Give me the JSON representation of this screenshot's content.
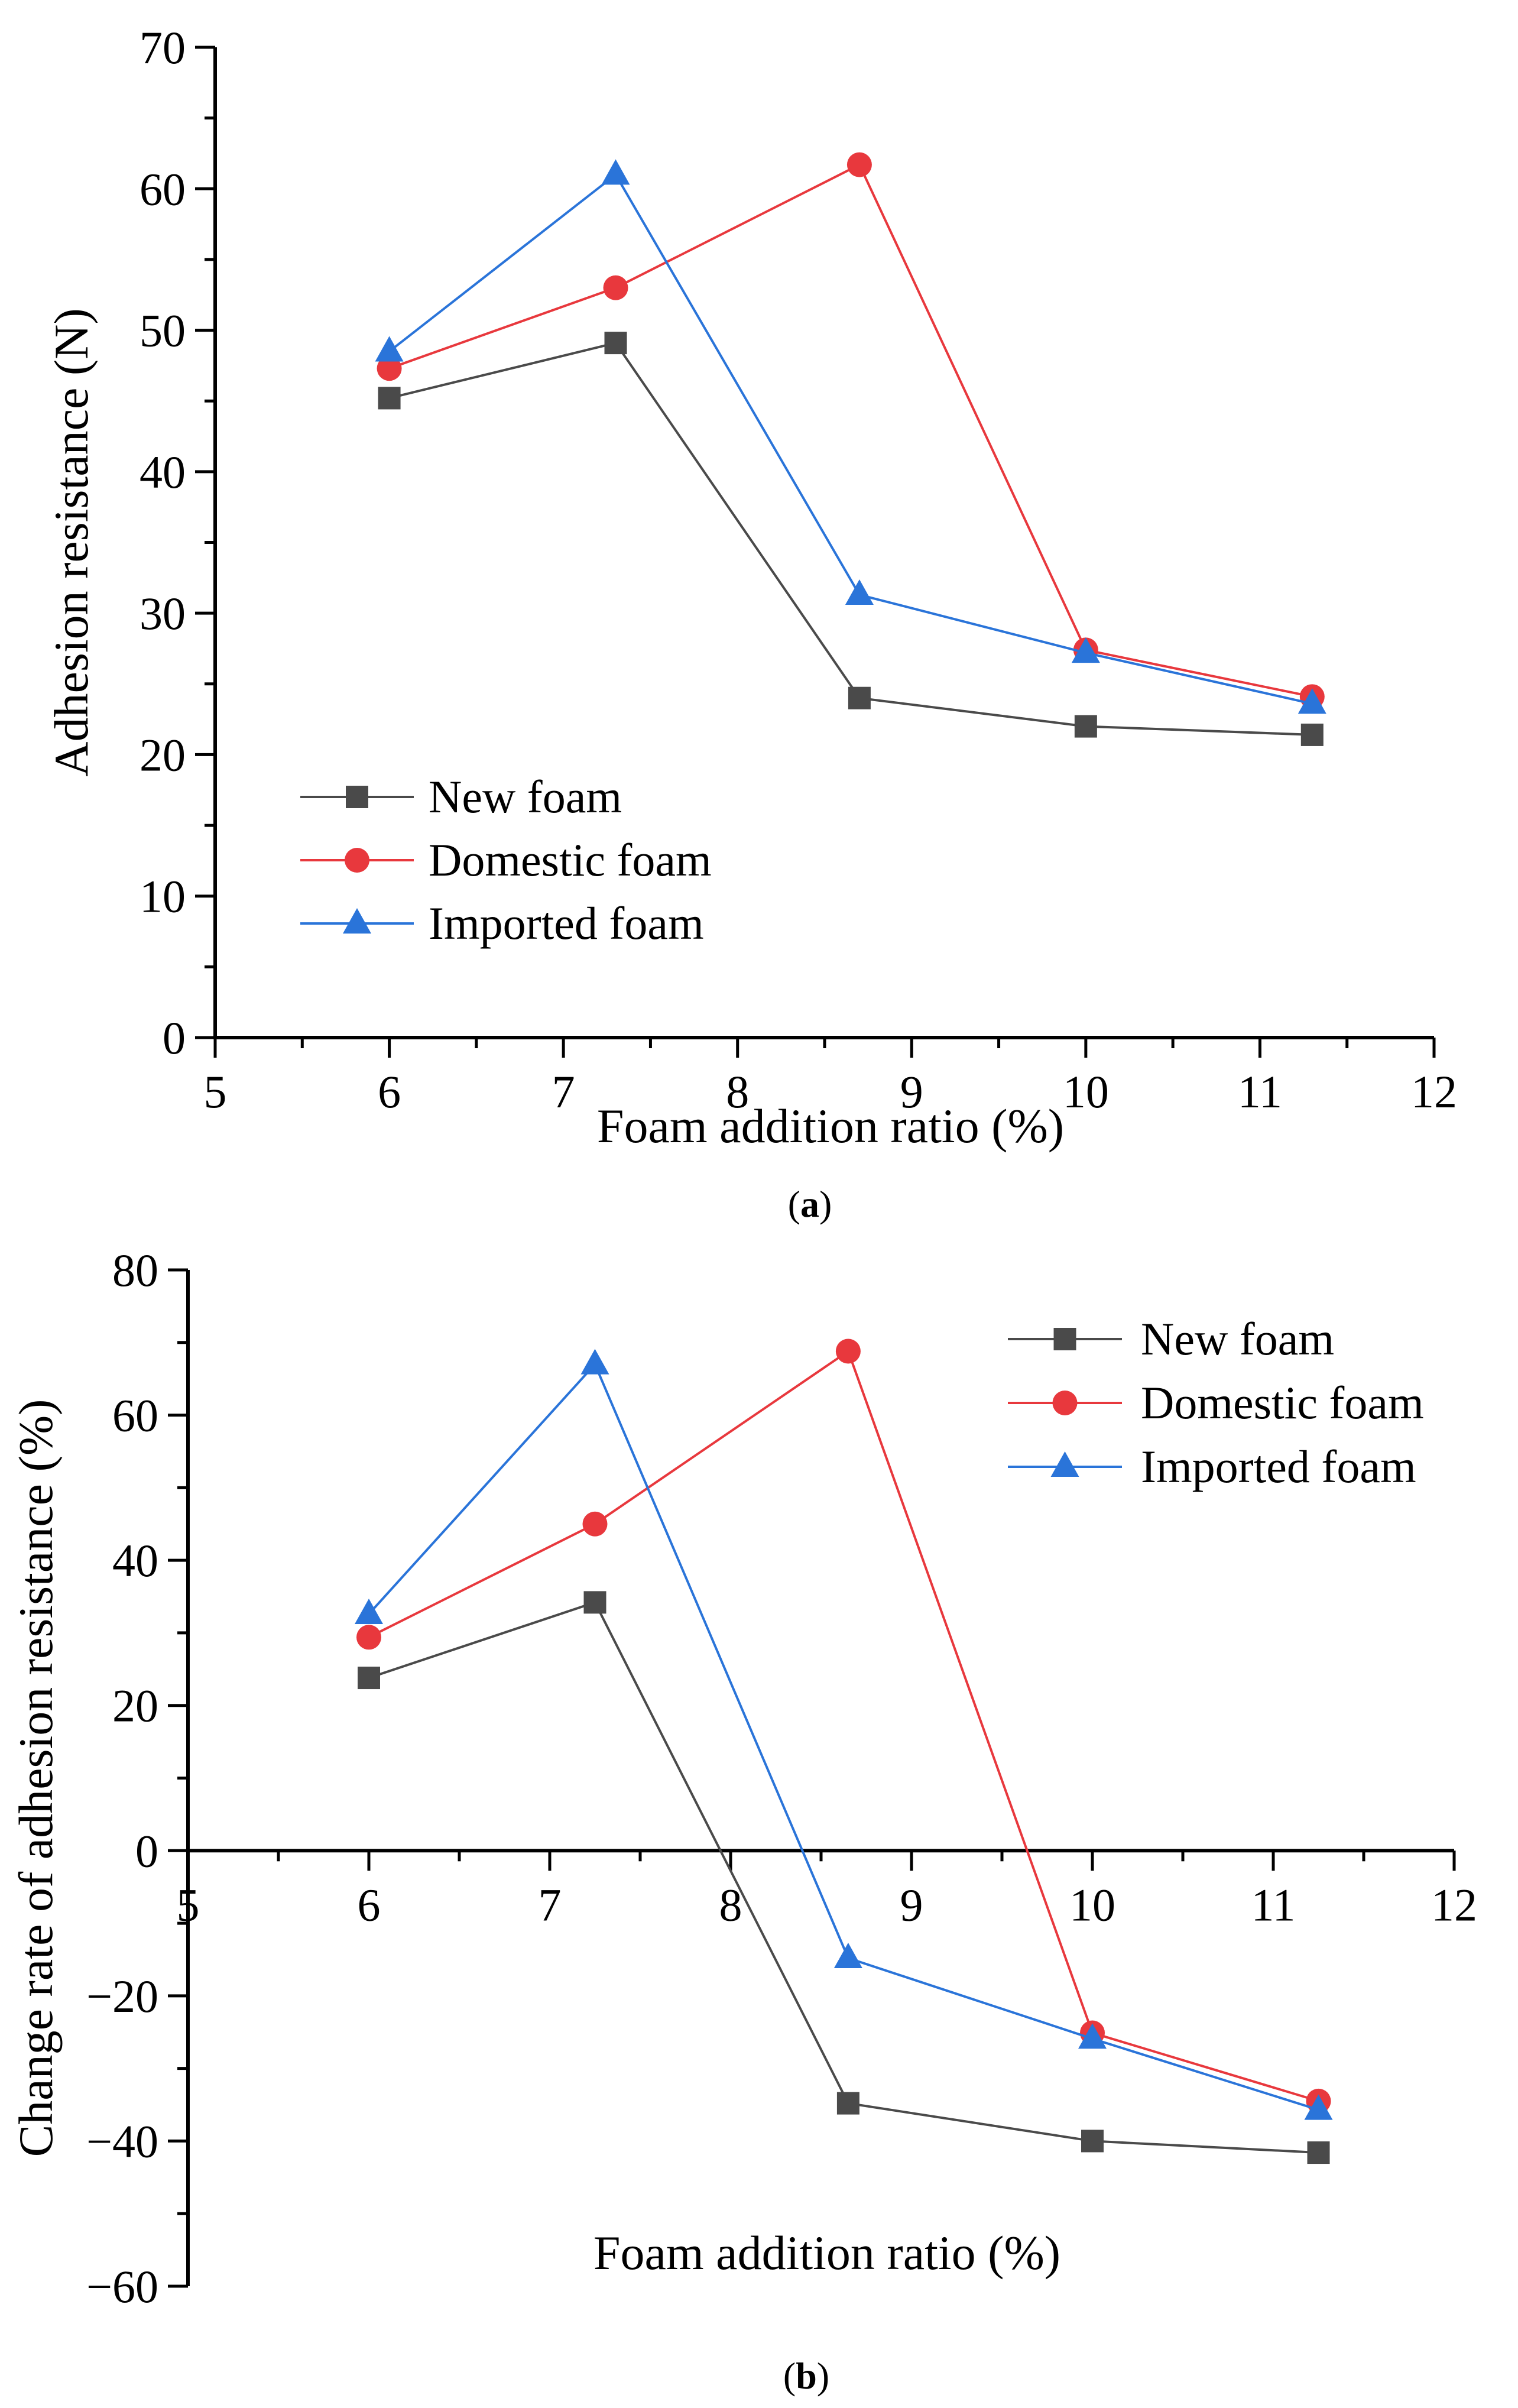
{
  "colors": {
    "new_foam": "#4a4a4a",
    "domestic_foam": "#e8383d",
    "imported_foam": "#2a74d9",
    "axis": "#000000"
  },
  "chart_data": [
    {
      "panel": "a",
      "caption": "(a)",
      "caption_letter": "a",
      "type": "line",
      "xlabel": "Foam addition ratio (%)",
      "ylabel": "Adhesion resistance (N)",
      "xlim": [
        5,
        12
      ],
      "ylim": [
        0,
        70
      ],
      "xticks": [
        "5",
        "6",
        "7",
        "8",
        "9",
        "10",
        "11",
        "12"
      ],
      "yticks": [
        "0",
        "10",
        "20",
        "30",
        "40",
        "50",
        "60",
        "70"
      ],
      "legend_position": "bottom-left",
      "grid": false,
      "series": [
        {
          "name": "New foam",
          "marker": "square",
          "x": [
            6,
            7.3,
            8.7,
            10,
            11.3
          ],
          "values": [
            45.2,
            49.1,
            24.0,
            22.0,
            21.4
          ]
        },
        {
          "name": "Domestic foam",
          "marker": "circle",
          "x": [
            6,
            7.3,
            8.7,
            10,
            11.3
          ],
          "values": [
            47.3,
            53.0,
            61.7,
            27.4,
            24.1
          ]
        },
        {
          "name": "Imported foam",
          "marker": "triangle",
          "x": [
            6,
            7.3,
            8.7,
            10,
            11.3
          ],
          "values": [
            48.5,
            61.0,
            31.3,
            27.2,
            23.6
          ]
        }
      ]
    },
    {
      "panel": "b",
      "caption": "(b)",
      "caption_letter": "b",
      "type": "line",
      "xlabel": "Foam addition ratio (%)",
      "ylabel": "Change rate of adhesion resistance (%)",
      "xlim": [
        5,
        12
      ],
      "ylim": [
        -60,
        80
      ],
      "xticks": [
        "5",
        "6",
        "7",
        "8",
        "9",
        "10",
        "11",
        "12"
      ],
      "yticks": [
        "−60",
        "−40",
        "−20",
        "0",
        "20",
        "40",
        "60",
        "80"
      ],
      "legend_position": "top-right",
      "grid": false,
      "series": [
        {
          "name": "New foam",
          "marker": "square",
          "x": [
            6,
            7.25,
            8.65,
            10,
            11.25
          ],
          "values": [
            23.8,
            34.2,
            -34.8,
            -40.0,
            -41.6
          ]
        },
        {
          "name": "Domestic foam",
          "marker": "circle",
          "x": [
            6,
            7.25,
            8.65,
            10,
            11.25
          ],
          "values": [
            29.4,
            45.0,
            68.8,
            -25.1,
            -34.5
          ]
        },
        {
          "name": "Imported foam",
          "marker": "triangle",
          "x": [
            6,
            7.25,
            8.65,
            10,
            11.25
          ],
          "values": [
            32.6,
            67.0,
            -14.8,
            -25.9,
            -35.7
          ]
        }
      ]
    }
  ]
}
